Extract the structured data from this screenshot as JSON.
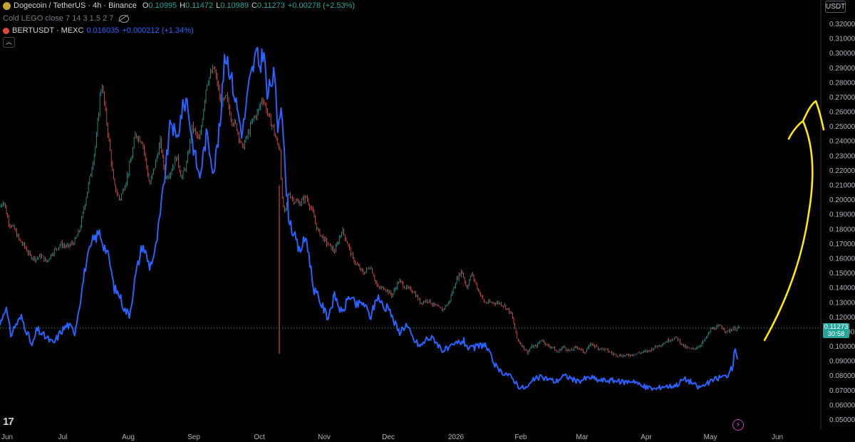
{
  "header": {
    "symbol": "Dogecoin / TetherUS · 4h · Binance",
    "open": "0.10995",
    "high": "0.11472",
    "low": "0.10989",
    "close": "0.11273",
    "change": "+0.00278 (+2.53%)",
    "o_label": "O",
    "h_label": "H",
    "l_label": "L",
    "c_label": "C"
  },
  "indicator": {
    "name": "Cold LEGO close 7 14 3 1.5 2 7"
  },
  "compare": {
    "symbol": "BERTUSDT · MEXC",
    "value": "0.016035",
    "change": "+0.000212 (+1.34%)"
  },
  "currency": "USDT",
  "price_tag": {
    "price": "0.11273",
    "countdown": "30:58"
  },
  "colors": {
    "up": "#26a69a",
    "down": "#ef5350",
    "compare": "#2962ff",
    "annotation": "#ffea00",
    "coin": "#c2a633"
  },
  "icons": [
    "dogecoin-icon",
    "bert-icon",
    "eye-hidden-icon",
    "chevron-up-icon",
    "tradingview-logo-icon",
    "lightning-icon"
  ],
  "chart_data": {
    "type": "line",
    "y_axis_ticks": [
      "0.32000",
      "0.31000",
      "0.30000",
      "0.29000",
      "0.28000",
      "0.27000",
      "0.26000",
      "0.25000",
      "0.24000",
      "0.23000",
      "0.22000",
      "0.21000",
      "0.20000",
      "0.19000",
      "0.18000",
      "0.17000",
      "0.16000",
      "0.15000",
      "0.14000",
      "0.13000",
      "0.12000",
      "0.11000",
      "0.10000",
      "0.09000",
      "0.08000",
      "0.07000",
      "0.06000",
      "0.05000"
    ],
    "x_axis_ticks": [
      "Jun",
      "Jul",
      "Aug",
      "Sep",
      "Oct",
      "Nov",
      "Dec",
      "2026",
      "Feb",
      "Mar",
      "Apr",
      "May",
      "Jun"
    ],
    "ylim": [
      0.045,
      0.325
    ],
    "series": [
      {
        "name": "Dogecoin / TetherUS",
        "style": "candles",
        "x": [
          0,
          5,
          12,
          20,
          28,
          35,
          42,
          50,
          58,
          65,
          75,
          85,
          95,
          105,
          112,
          120,
          128,
          135,
          140,
          143,
          148,
          153,
          160,
          168,
          178,
          185,
          190,
          200,
          210,
          218,
          225,
          232,
          240,
          248,
          255,
          262,
          270,
          280,
          290,
          300,
          305,
          310,
          318,
          325,
          332,
          340,
          348,
          355,
          362,
          368,
          372,
          378,
          383,
          388,
          393,
          396,
          400,
          405,
          412,
          420,
          430,
          440,
          445,
          452,
          460,
          470,
          480,
          488,
          495,
          502,
          510,
          520,
          530,
          540,
          550,
          560,
          570,
          580,
          590,
          600,
          610,
          620,
          630,
          640,
          648,
          655,
          662,
          670,
          680,
          690,
          700,
          708,
          718,
          726,
          734,
          740,
          746,
          752,
          760,
          770,
          775,
          782,
          790,
          800,
          810,
          820,
          830,
          840,
          850,
          860,
          870,
          880,
          890,
          900,
          910,
          920,
          930,
          940,
          950,
          960,
          970,
          980,
          990,
          998,
          1005,
          1012,
          1020,
          1028,
          1036
        ],
        "y": [
          0.195,
          0.2,
          0.185,
          0.18,
          0.172,
          0.168,
          0.162,
          0.16,
          0.162,
          0.158,
          0.165,
          0.17,
          0.168,
          0.172,
          0.18,
          0.2,
          0.22,
          0.24,
          0.27,
          0.28,
          0.26,
          0.24,
          0.21,
          0.2,
          0.215,
          0.23,
          0.245,
          0.24,
          0.21,
          0.225,
          0.24,
          0.215,
          0.22,
          0.23,
          0.215,
          0.225,
          0.25,
          0.24,
          0.28,
          0.29,
          0.28,
          0.265,
          0.27,
          0.255,
          0.25,
          0.235,
          0.245,
          0.255,
          0.26,
          0.27,
          0.265,
          0.255,
          0.25,
          0.24,
          0.235,
          0.2,
          0.19,
          0.205,
          0.2,
          0.198,
          0.202,
          0.19,
          0.18,
          0.175,
          0.17,
          0.165,
          0.18,
          0.17,
          0.16,
          0.155,
          0.15,
          0.155,
          0.14,
          0.14,
          0.135,
          0.145,
          0.14,
          0.138,
          0.13,
          0.132,
          0.128,
          0.125,
          0.13,
          0.145,
          0.152,
          0.14,
          0.15,
          0.14,
          0.13,
          0.13,
          0.13,
          0.128,
          0.122,
          0.105,
          0.1,
          0.096,
          0.1,
          0.1,
          0.105,
          0.1,
          0.1,
          0.096,
          0.1,
          0.097,
          0.1,
          0.096,
          0.102,
          0.099,
          0.098,
          0.095,
          0.094,
          0.094,
          0.095,
          0.096,
          0.097,
          0.1,
          0.102,
          0.105,
          0.106,
          0.1,
          0.098,
          0.1,
          0.105,
          0.112,
          0.113,
          0.114,
          0.11,
          0.112,
          0.11273
        ]
      },
      {
        "name": "BERTUSDT · MEXC",
        "style": "line",
        "x": [
          0,
          8,
          15,
          22,
          30,
          38,
          45,
          52,
          60,
          68,
          75,
          85,
          95,
          105,
          112,
          120,
          130,
          140,
          145,
          150,
          155,
          160,
          168,
          175,
          182,
          190,
          200,
          210,
          218,
          225,
          232,
          240,
          248,
          255,
          262,
          270,
          280,
          290,
          300,
          310,
          315,
          320,
          330,
          340,
          350,
          360,
          365,
          370,
          375,
          380,
          385,
          390,
          395,
          400,
          405,
          410,
          420,
          430,
          440,
          450,
          460,
          470,
          480,
          490,
          500,
          510,
          520,
          530,
          540,
          545,
          550,
          560,
          570,
          580,
          590,
          600,
          610,
          620,
          630,
          640,
          650,
          660,
          670,
          680,
          690,
          700,
          710,
          720,
          730,
          740,
          750,
          760,
          770,
          780,
          790,
          800,
          810,
          820,
          830,
          840,
          850,
          860,
          870,
          880,
          890,
          900,
          910,
          920,
          930,
          940,
          950,
          960,
          970,
          980,
          990,
          1000,
          1010,
          1020,
          1028,
          1032,
          1036
        ],
        "y": [
          0.115,
          0.128,
          0.108,
          0.115,
          0.12,
          0.11,
          0.1,
          0.112,
          0.108,
          0.105,
          0.102,
          0.11,
          0.115,
          0.11,
          0.13,
          0.155,
          0.172,
          0.178,
          0.17,
          0.165,
          0.155,
          0.14,
          0.135,
          0.125,
          0.122,
          0.148,
          0.17,
          0.155,
          0.165,
          0.19,
          0.22,
          0.255,
          0.24,
          0.26,
          0.27,
          0.24,
          0.215,
          0.245,
          0.22,
          0.255,
          0.3,
          0.295,
          0.27,
          0.245,
          0.28,
          0.3,
          0.29,
          0.305,
          0.27,
          0.28,
          0.285,
          0.25,
          0.27,
          0.22,
          0.19,
          0.18,
          0.165,
          0.175,
          0.14,
          0.13,
          0.12,
          0.135,
          0.122,
          0.135,
          0.128,
          0.13,
          0.12,
          0.135,
          0.125,
          0.13,
          0.12,
          0.11,
          0.115,
          0.105,
          0.1,
          0.106,
          0.105,
          0.098,
          0.098,
          0.102,
          0.104,
          0.098,
          0.1,
          0.102,
          0.092,
          0.083,
          0.082,
          0.078,
          0.072,
          0.072,
          0.078,
          0.079,
          0.078,
          0.076,
          0.08,
          0.079,
          0.076,
          0.078,
          0.079,
          0.077,
          0.077,
          0.077,
          0.076,
          0.076,
          0.077,
          0.073,
          0.072,
          0.071,
          0.073,
          0.073,
          0.074,
          0.078,
          0.076,
          0.072,
          0.074,
          0.077,
          0.079,
          0.08,
          0.086,
          0.1,
          0.09
        ]
      }
    ],
    "last_price": 0.11273,
    "grid": false,
    "annotation": "hand-drawn yellow upward arrow"
  }
}
